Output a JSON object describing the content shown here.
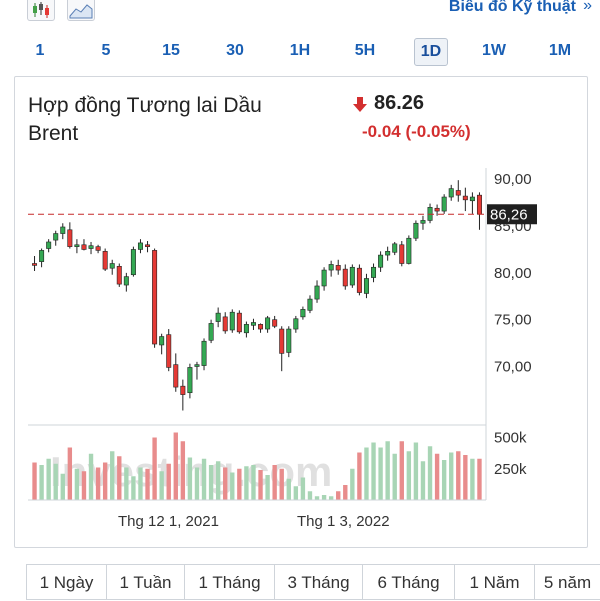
{
  "header": {
    "technical_chart_link": "Biểu đồ Kỹ thuật",
    "chevron": "»",
    "icons": [
      "candlestick-icon",
      "area-chart-icon"
    ]
  },
  "intervals": [
    "1",
    "5",
    "15",
    "30",
    "1H",
    "5H",
    "1D",
    "1W",
    "1M"
  ],
  "active_interval": "1D",
  "instrument": {
    "title_line1": "Hợp đồng Tương lai Dầu",
    "title_line2": "Brent",
    "price": "86.26",
    "change": "-0.04",
    "change_pct": "(-0.05%)",
    "price_tag": "86,26"
  },
  "colors": {
    "up": "#34a853",
    "down": "#e53935",
    "link": "#1a5fb4",
    "vol_up": "#a8d5b5",
    "vol_down": "#e88c8c"
  },
  "watermark": "Investing.com",
  "chart_data": {
    "type": "candlestick",
    "y_ticks": [
      "90,00",
      "85,00",
      "80,00",
      "75,00",
      "70,00"
    ],
    "ylim": [
      64.5,
      91.2
    ],
    "volume_ticks": [
      "500k",
      "250k"
    ],
    "volume_max": 560,
    "x_ticks": [
      "Thg 12 1, 2021",
      "Thg 1 3, 2022"
    ],
    "last_price_line": 86.26,
    "candles": [
      [
        81.0,
        81.8,
        80.2,
        80.8,
        300
      ],
      [
        81.2,
        82.6,
        80.6,
        82.4,
        280
      ],
      [
        82.6,
        83.6,
        82.2,
        83.3,
        330
      ],
      [
        83.5,
        84.5,
        82.9,
        84.2,
        290
      ],
      [
        84.2,
        85.3,
        83.6,
        84.9,
        210
      ],
      [
        84.6,
        85.4,
        82.6,
        82.8,
        420
      ],
      [
        82.8,
        83.6,
        82.1,
        83.0,
        250
      ],
      [
        83.0,
        83.6,
        82.4,
        82.5,
        230
      ],
      [
        82.6,
        83.3,
        82.0,
        82.9,
        370
      ],
      [
        82.8,
        83.0,
        82.1,
        82.4,
        260
      ],
      [
        82.3,
        82.6,
        80.2,
        80.4,
        300
      ],
      [
        80.5,
        81.4,
        79.8,
        81.0,
        390
      ],
      [
        80.7,
        81.0,
        78.5,
        78.8,
        350
      ],
      [
        78.7,
        80.0,
        78.0,
        79.6,
        260
      ],
      [
        79.8,
        82.8,
        79.6,
        82.5,
        190
      ],
      [
        82.5,
        83.6,
        82.1,
        83.2,
        260
      ],
      [
        83.0,
        83.4,
        82.2,
        82.8,
        250
      ],
      [
        82.4,
        82.6,
        72.0,
        72.4,
        500
      ],
      [
        72.3,
        73.5,
        71.3,
        73.2,
        230
      ],
      [
        73.4,
        74.0,
        69.5,
        69.9,
        290
      ],
      [
        70.2,
        71.4,
        67.3,
        67.8,
        540
      ],
      [
        67.9,
        68.6,
        65.3,
        67.0,
        470
      ],
      [
        67.2,
        70.3,
        66.6,
        69.9,
        340
      ],
      [
        70.0,
        70.5,
        68.6,
        70.2,
        260
      ],
      [
        70.1,
        73.0,
        69.6,
        72.7,
        330
      ],
      [
        72.8,
        75.0,
        72.5,
        74.6,
        280
      ],
      [
        74.8,
        76.3,
        74.2,
        75.7,
        310
      ],
      [
        75.3,
        75.8,
        73.5,
        73.8,
        260
      ],
      [
        73.9,
        76.1,
        73.6,
        75.8,
        220
      ],
      [
        75.7,
        76.0,
        73.5,
        73.7,
        250
      ],
      [
        73.6,
        74.8,
        73.1,
        74.5,
        270
      ],
      [
        74.4,
        75.1,
        73.9,
        74.7,
        280
      ],
      [
        74.5,
        74.6,
        73.6,
        74.0,
        240
      ],
      [
        74.0,
        75.4,
        73.6,
        75.2,
        200
      ],
      [
        75.0,
        75.4,
        74.1,
        74.3,
        280
      ],
      [
        74.0,
        74.3,
        69.5,
        71.4,
        250
      ],
      [
        71.5,
        74.3,
        71.0,
        74.0,
        170
      ],
      [
        74.0,
        75.4,
        73.6,
        75.1,
        110
      ],
      [
        75.3,
        76.4,
        75.0,
        76.1,
        180
      ],
      [
        76.0,
        77.6,
        75.7,
        77.2,
        70
      ],
      [
        77.2,
        79.2,
        76.8,
        78.6,
        30
      ],
      [
        78.6,
        80.6,
        78.1,
        80.3,
        40
      ],
      [
        80.3,
        81.3,
        79.6,
        80.9,
        30
      ],
      [
        80.8,
        81.4,
        79.8,
        80.3,
        70
      ],
      [
        80.4,
        80.9,
        78.2,
        78.6,
        120
      ],
      [
        78.7,
        80.9,
        78.4,
        80.6,
        250
      ],
      [
        80.5,
        80.9,
        77.6,
        77.9,
        380
      ],
      [
        77.8,
        79.9,
        77.3,
        79.4,
        420
      ],
      [
        79.5,
        81.0,
        79.0,
        80.6,
        460
      ],
      [
        80.6,
        82.3,
        80.1,
        81.9,
        420
      ],
      [
        81.9,
        82.8,
        81.3,
        82.3,
        470
      ],
      [
        82.2,
        83.3,
        81.9,
        83.1,
        370
      ],
      [
        83.0,
        83.4,
        80.7,
        81.0,
        470
      ],
      [
        81.0,
        84.0,
        80.9,
        83.7,
        390
      ],
      [
        83.7,
        85.6,
        83.4,
        85.3,
        460
      ],
      [
        85.3,
        86.1,
        84.6,
        85.6,
        310
      ],
      [
        85.6,
        87.4,
        85.3,
        87.0,
        430
      ],
      [
        86.9,
        87.3,
        86.1,
        86.6,
        370
      ],
      [
        86.6,
        88.4,
        86.3,
        88.1,
        320
      ],
      [
        88.1,
        89.4,
        87.7,
        89.0,
        380
      ],
      [
        88.8,
        89.9,
        87.6,
        88.3,
        390
      ],
      [
        88.2,
        89.1,
        86.6,
        87.8,
        360
      ],
      [
        87.7,
        88.6,
        86.3,
        88.1,
        330
      ],
      [
        88.3,
        88.6,
        84.6,
        86.26,
        330
      ]
    ]
  },
  "ranges": [
    "1 Ngày",
    "1 Tuần",
    "1 Tháng",
    "3 Tháng",
    "6 Tháng",
    "1 Năm",
    "5 năm"
  ]
}
